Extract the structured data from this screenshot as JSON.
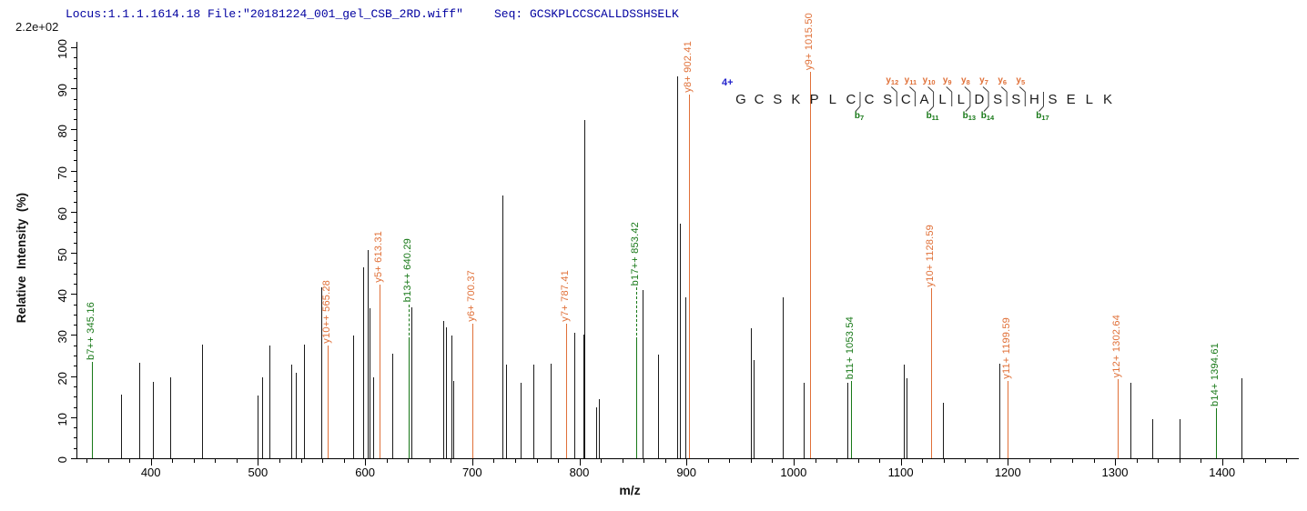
{
  "header": {
    "locus_file": "Locus:1.1.1.1614.18 File:\"20181224_001_gel_CSB_2RD.wiff\"",
    "seq": "Seq: GCSKPLCCSCALLDSSHSELK",
    "base_peak_intensity": "2.2e+02"
  },
  "axes": {
    "xlabel": "m/z",
    "ylabel": "Relative  Intensity  (%)",
    "x_major_ticks": [
      400,
      500,
      600,
      700,
      800,
      900,
      1000,
      1100,
      1200,
      1300,
      1400
    ],
    "x_minor_step": 20,
    "y_major_ticks": [
      0,
      10,
      20,
      30,
      40,
      50,
      60,
      70,
      80,
      90,
      100
    ],
    "y_minor_step": 2.5
  },
  "annotation": {
    "precursor_charge": "4+",
    "peptide": "GCSKPLCCSCALLDSSHSELK",
    "y_ions": [
      {
        "name": "y12",
        "gap": 9
      },
      {
        "name": "y11",
        "gap": 10
      },
      {
        "name": "y10",
        "gap": 11
      },
      {
        "name": "y9",
        "gap": 12
      },
      {
        "name": "y8",
        "gap": 13
      },
      {
        "name": "y7",
        "gap": 14
      },
      {
        "name": "y6",
        "gap": 15
      },
      {
        "name": "y5",
        "gap": 16
      }
    ],
    "b_ions": [
      {
        "name": "b7",
        "gap": 7
      },
      {
        "name": "b11",
        "gap": 11
      },
      {
        "name": "b13",
        "gap": 13
      },
      {
        "name": "b14",
        "gap": 14
      },
      {
        "name": "b17",
        "gap": 17
      }
    ]
  },
  "colors": {
    "unassigned_peak": "#1a1a1a",
    "y_ion": "#E07038",
    "b_ion": "#177817",
    "header_text": "#0000A0",
    "charge_text": "#2222CC",
    "marker_stroke": "#3a3a3a"
  },
  "chart_data": {
    "type": "bar",
    "title": "MS/MS fragmentation spectrum of peptide GCSKPLCCSCALLDSSHSELK (4+)",
    "xlabel": "m/z",
    "ylabel": "Relative Intensity (%)",
    "xlim": [
      331.4,
      1472
    ],
    "ylim": [
      0,
      100
    ],
    "base_peak_intensity": "2.2e+02",
    "peaks": [
      {
        "mz": 345.16,
        "i": 23.5,
        "series": "b",
        "label": "b7++ 345.16"
      },
      {
        "mz": 372.5,
        "i": 15.5
      },
      {
        "mz": 389.5,
        "i": 23.3
      },
      {
        "mz": 401.7,
        "i": 18.5
      },
      {
        "mz": 417.8,
        "i": 19.7
      },
      {
        "mz": 447.6,
        "i": 27.6
      },
      {
        "mz": 499.4,
        "i": 15.2
      },
      {
        "mz": 504.1,
        "i": 19.6
      },
      {
        "mz": 510.3,
        "i": 27.5
      },
      {
        "mz": 531.4,
        "i": 22.8
      },
      {
        "mz": 535.5,
        "i": 20.8
      },
      {
        "mz": 543.0,
        "i": 27.7
      },
      {
        "mz": 559.0,
        "i": 41.5
      },
      {
        "mz": 565.28,
        "i": 27.5,
        "series": "y",
        "label": "y10++ 565.28"
      },
      {
        "mz": 588.5,
        "i": 29.9
      },
      {
        "mz": 598.2,
        "i": 46.5
      },
      {
        "mz": 602.5,
        "i": 50.6
      },
      {
        "mz": 604.2,
        "i": 36.5
      },
      {
        "mz": 607.3,
        "i": 19.8
      },
      {
        "mz": 613.31,
        "i": 42.3,
        "series": "y",
        "label": "y5+ 613.31"
      },
      {
        "mz": 625.6,
        "i": 25.4
      },
      {
        "mz": 640.29,
        "i": 28.8,
        "series": "b",
        "label": "b13++ 640.29",
        "label_i": 37.5,
        "dashed": true
      },
      {
        "mz": 643.5,
        "i": 36.7
      },
      {
        "mz": 672.7,
        "i": 33.4
      },
      {
        "mz": 675.4,
        "i": 31.9
      },
      {
        "mz": 680.5,
        "i": 29.9
      },
      {
        "mz": 682.2,
        "i": 18.8
      },
      {
        "mz": 700.37,
        "i": 32.8,
        "series": "y",
        "label": "y6+ 700.37"
      },
      {
        "mz": 728.3,
        "i": 63.9
      },
      {
        "mz": 731.2,
        "i": 22.8
      },
      {
        "mz": 745.3,
        "i": 18.4
      },
      {
        "mz": 757.2,
        "i": 22.8
      },
      {
        "mz": 773.1,
        "i": 23.0
      },
      {
        "mz": 787.41,
        "i": 32.8,
        "series": "y",
        "label": "y7+ 787.41"
      },
      {
        "mz": 795.3,
        "i": 30.5
      },
      {
        "mz": 803.6,
        "i": 30.0
      },
      {
        "mz": 804.6,
        "i": 82.3
      },
      {
        "mz": 815.6,
        "i": 12.5
      },
      {
        "mz": 818.2,
        "i": 14.5
      },
      {
        "mz": 853.42,
        "i": 28.7,
        "series": "b",
        "label": "b17++ 853.42",
        "label_i": 41.5,
        "dashed": true
      },
      {
        "mz": 858.8,
        "i": 40.9
      },
      {
        "mz": 873.3,
        "i": 25.2
      },
      {
        "mz": 891.6,
        "i": 93.0
      },
      {
        "mz": 893.6,
        "i": 57.2
      },
      {
        "mz": 899.2,
        "i": 39.1
      },
      {
        "mz": 902.41,
        "i": 88.5,
        "series": "y",
        "label": "y8+ 902.41"
      },
      {
        "mz": 960.2,
        "i": 31.7
      },
      {
        "mz": 963.0,
        "i": 23.9
      },
      {
        "mz": 989.9,
        "i": 39.1
      },
      {
        "mz": 1009.7,
        "i": 18.4
      },
      {
        "mz": 1015.5,
        "i": 94.0,
        "series": "y",
        "label": "y9+ 1015.50"
      },
      {
        "mz": 1050.2,
        "i": 18.4
      },
      {
        "mz": 1053.54,
        "i": 18.8,
        "series": "b",
        "label": "b11+ 1053.54"
      },
      {
        "mz": 1103.1,
        "i": 22.8
      },
      {
        "mz": 1105.5,
        "i": 19.5
      },
      {
        "mz": 1128.59,
        "i": 41.3,
        "series": "y",
        "label": "y10+ 1128.59"
      },
      {
        "mz": 1139.0,
        "i": 13.6
      },
      {
        "mz": 1192.3,
        "i": 23.0
      },
      {
        "mz": 1199.59,
        "i": 18.8,
        "series": "y",
        "label": "y11+ 1199.59"
      },
      {
        "mz": 1302.64,
        "i": 19.2,
        "series": "y",
        "label": "y12+ 1302.64"
      },
      {
        "mz": 1314.3,
        "i": 18.4
      },
      {
        "mz": 1335.0,
        "i": 9.5
      },
      {
        "mz": 1360.2,
        "i": 9.5
      },
      {
        "mz": 1394.61,
        "i": 12.1,
        "series": "b",
        "label": "b14+ 1394.61"
      },
      {
        "mz": 1418.1,
        "i": 19.5
      }
    ]
  }
}
